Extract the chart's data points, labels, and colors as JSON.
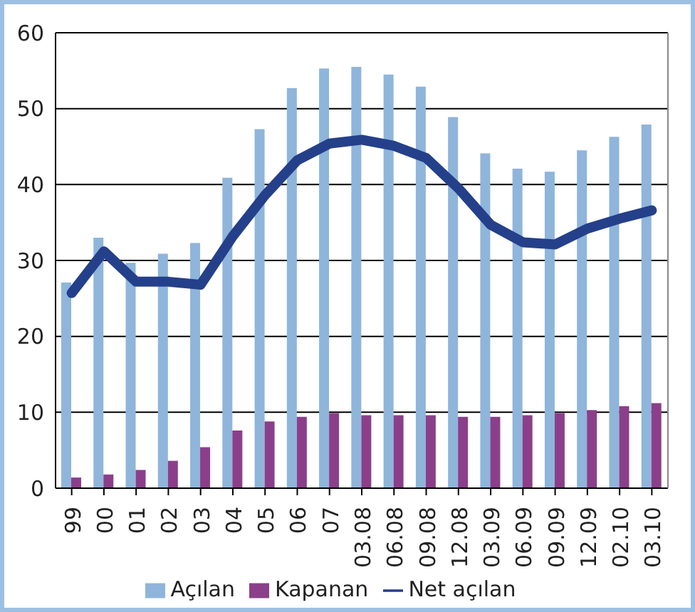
{
  "chart_data": {
    "type": "bar",
    "categories": [
      "99",
      "00",
      "01",
      "02",
      "03",
      "04",
      "05",
      "06",
      "07",
      "03.08",
      "06.08",
      "09.08",
      "12.08",
      "03.09",
      "06.09",
      "09.09",
      "12.09",
      "02.10",
      "03.10"
    ],
    "series": [
      {
        "name": "Açılan",
        "color": "#8fb5db",
        "values": [
          27.1,
          33,
          29.7,
          30.9,
          32.3,
          40.9,
          47.3,
          52.7,
          55.3,
          55.5,
          54.5,
          52.9,
          48.9,
          44.1,
          42.1,
          41.7,
          44.5,
          46.3,
          47.9
        ]
      },
      {
        "name": "Kapanan",
        "color": "#8b3f8a",
        "values": [
          1.4,
          1.8,
          2.4,
          3.6,
          5.4,
          7.6,
          8.8,
          9.4,
          9.9,
          9.6,
          9.6,
          9.6,
          9.4,
          9.4,
          9.6,
          9.9,
          10.3,
          10.8,
          11.2
        ]
      },
      {
        "name": "Net açılan",
        "type": "line",
        "color": "#24408a",
        "values": [
          25.7,
          31.2,
          27.2,
          27.2,
          26.8,
          33.2,
          38.6,
          43.2,
          45.4,
          45.9,
          45.1,
          43.5,
          39.5,
          34.7,
          32.4,
          32.1,
          34.2,
          35.5,
          36.6
        ]
      }
    ],
    "ylim": [
      0,
      60
    ],
    "yticks": [
      0,
      10,
      20,
      30,
      40,
      50,
      60
    ],
    "grid": "y",
    "legend": "bottom",
    "marker": "none"
  }
}
